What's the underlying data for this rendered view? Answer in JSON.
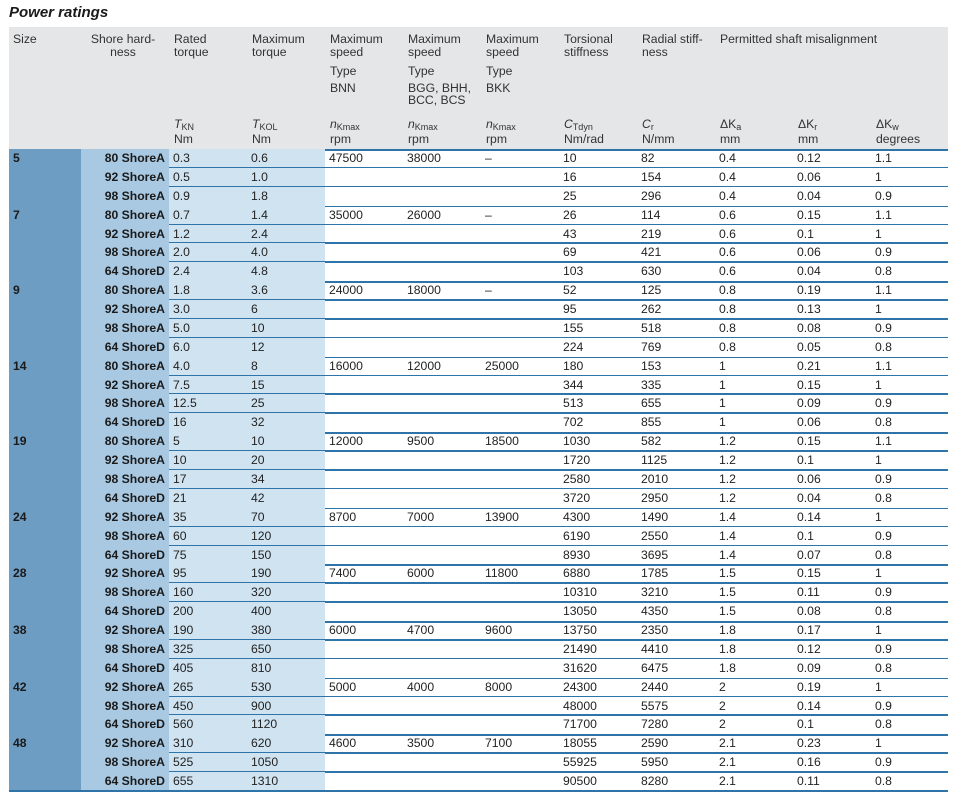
{
  "title": "Power ratings",
  "headers": {
    "size": "Size",
    "shore_1": "Shore hard-",
    "shore_2": "ness",
    "rated_1": "Rated",
    "rated_2": "torque",
    "max_torque_1": "Maximum",
    "max_torque_2": "torque",
    "max_speed_1": "Maximum",
    "max_speed_2": "speed",
    "type": "Type",
    "type_bnn": "BNN",
    "type_bgg_1": "BGG, BHH,",
    "type_bgg_2": "BCC, BCS",
    "type_bkk": "BKK",
    "torsional_1": "Torsional",
    "torsional_2": "stiffness",
    "radial_1": "Radial stiff-",
    "radial_2": "ness",
    "misalign": "Permitted shaft misalignment",
    "sym_t": "T",
    "sym_kn": "KN",
    "sym_kol": "KOL",
    "sym_n": "n",
    "sym_kmax": "Kmax",
    "sym_c": "C",
    "sym_tdyn": "Tdyn",
    "sym_r": "r",
    "sym_delta_k": "ΔK",
    "sym_a": "a",
    "sym_w": "w",
    "unit_nm": "Nm",
    "unit_rpm": "rpm",
    "unit_nmrad": "Nm/rad",
    "unit_nmm": "N/mm",
    "unit_mm": "mm",
    "unit_deg": "degrees"
  },
  "groups": [
    {
      "size": "5",
      "nbnn": "47500",
      "nbgg": "38000",
      "nbkk": "–",
      "rows": [
        {
          "shore": "80 ShoreA",
          "tkn": "0.3",
          "tkol": "0.6",
          "ct": "10",
          "cr": "82",
          "ka": "0.4",
          "kr": "0.12",
          "kw": "1.1"
        },
        {
          "shore": "92 ShoreA",
          "tkn": "0.5",
          "tkol": "1.0",
          "ct": "16",
          "cr": "154",
          "ka": "0.4",
          "kr": "0.06",
          "kw": "1"
        },
        {
          "shore": "98 ShoreA",
          "tkn": "0.9",
          "tkol": "1.8",
          "ct": "25",
          "cr": "296",
          "ka": "0.4",
          "kr": "0.04",
          "kw": "0.9"
        }
      ]
    },
    {
      "size": "7",
      "nbnn": "35000",
      "nbgg": "26000",
      "nbkk": "–",
      "rows": [
        {
          "shore": "80 ShoreA",
          "tkn": "0.7",
          "tkol": "1.4",
          "ct": "26",
          "cr": "114",
          "ka": "0.6",
          "kr": "0.15",
          "kw": "1.1"
        },
        {
          "shore": "92 ShoreA",
          "tkn": "1.2",
          "tkol": "2.4",
          "ct": "43",
          "cr": "219",
          "ka": "0.6",
          "kr": "0.1",
          "kw": "1"
        },
        {
          "shore": "98 ShoreA",
          "tkn": "2.0",
          "tkol": "4.0",
          "ct": "69",
          "cr": "421",
          "ka": "0.6",
          "kr": "0.06",
          "kw": "0.9"
        },
        {
          "shore": "64 ShoreD",
          "tkn": "2.4",
          "tkol": "4.8",
          "ct": "103",
          "cr": "630",
          "ka": "0.6",
          "kr": "0.04",
          "kw": "0.8"
        }
      ]
    },
    {
      "size": "9",
      "nbnn": "24000",
      "nbgg": "18000",
      "nbkk": "–",
      "rows": [
        {
          "shore": "80 ShoreA",
          "tkn": "1.8",
          "tkol": "3.6",
          "ct": "52",
          "cr": "125",
          "ka": "0.8",
          "kr": "0.19",
          "kw": "1.1"
        },
        {
          "shore": "92 ShoreA",
          "tkn": "3.0",
          "tkol": "6",
          "ct": "95",
          "cr": "262",
          "ka": "0.8",
          "kr": "0.13",
          "kw": "1"
        },
        {
          "shore": "98 ShoreA",
          "tkn": "5.0",
          "tkol": "10",
          "ct": "155",
          "cr": "518",
          "ka": "0.8",
          "kr": "0.08",
          "kw": "0.9"
        },
        {
          "shore": "64 ShoreD",
          "tkn": "6.0",
          "tkol": "12",
          "ct": "224",
          "cr": "769",
          "ka": "0.8",
          "kr": "0.05",
          "kw": "0.8"
        }
      ]
    },
    {
      "size": "14",
      "nbnn": "16000",
      "nbgg": "12000",
      "nbkk": "25000",
      "rows": [
        {
          "shore": "80 ShoreA",
          "tkn": "4.0",
          "tkol": "8",
          "ct": "180",
          "cr": "153",
          "ka": "1",
          "kr": "0.21",
          "kw": "1.1"
        },
        {
          "shore": "92 ShoreA",
          "tkn": "7.5",
          "tkol": "15",
          "ct": "344",
          "cr": "335",
          "ka": "1",
          "kr": "0.15",
          "kw": "1"
        },
        {
          "shore": "98 ShoreA",
          "tkn": "12.5",
          "tkol": "25",
          "ct": "513",
          "cr": "655",
          "ka": "1",
          "kr": "0.09",
          "kw": "0.9"
        },
        {
          "shore": "64 ShoreD",
          "tkn": "16",
          "tkol": "32",
          "ct": "702",
          "cr": "855",
          "ka": "1",
          "kr": "0.06",
          "kw": "0.8"
        }
      ]
    },
    {
      "size": "19",
      "nbnn": "12000",
      "nbgg": "9500",
      "nbkk": "18500",
      "rows": [
        {
          "shore": "80 ShoreA",
          "tkn": "5",
          "tkol": "10",
          "ct": "1030",
          "cr": "582",
          "ka": "1.2",
          "kr": "0.15",
          "kw": "1.1"
        },
        {
          "shore": "92 ShoreA",
          "tkn": "10",
          "tkol": "20",
          "ct": "1720",
          "cr": "1125",
          "ka": "1.2",
          "kr": "0.1",
          "kw": "1"
        },
        {
          "shore": "98 ShoreA",
          "tkn": "17",
          "tkol": "34",
          "ct": "2580",
          "cr": "2010",
          "ka": "1.2",
          "kr": "0.06",
          "kw": "0.9"
        },
        {
          "shore": "64 ShoreD",
          "tkn": "21",
          "tkol": "42",
          "ct": "3720",
          "cr": "2950",
          "ka": "1.2",
          "kr": "0.04",
          "kw": "0.8"
        }
      ]
    },
    {
      "size": "24",
      "nbnn": "8700",
      "nbgg": "7000",
      "nbkk": "13900",
      "rows": [
        {
          "shore": "92 ShoreA",
          "tkn": "35",
          "tkol": "70",
          "ct": "4300",
          "cr": "1490",
          "ka": "1.4",
          "kr": "0.14",
          "kw": "1"
        },
        {
          "shore": "98 ShoreA",
          "tkn": "60",
          "tkol": "120",
          "ct": "6190",
          "cr": "2550",
          "ka": "1.4",
          "kr": "0.1",
          "kw": "0.9"
        },
        {
          "shore": "64 ShoreD",
          "tkn": "75",
          "tkol": "150",
          "ct": "8930",
          "cr": "3695",
          "ka": "1.4",
          "kr": "0.07",
          "kw": "0.8"
        }
      ]
    },
    {
      "size": "28",
      "nbnn": "7400",
      "nbgg": "6000",
      "nbkk": "11800",
      "rows": [
        {
          "shore": "92 ShoreA",
          "tkn": "95",
          "tkol": "190",
          "ct": "6880",
          "cr": "1785",
          "ka": "1.5",
          "kr": "0.15",
          "kw": "1"
        },
        {
          "shore": "98 ShoreA",
          "tkn": "160",
          "tkol": "320",
          "ct": "10310",
          "cr": "3210",
          "ka": "1.5",
          "kr": "0.11",
          "kw": "0.9"
        },
        {
          "shore": "64 ShoreD",
          "tkn": "200",
          "tkol": "400",
          "ct": "13050",
          "cr": "4350",
          "ka": "1.5",
          "kr": "0.08",
          "kw": "0.8"
        }
      ]
    },
    {
      "size": "38",
      "nbnn": "6000",
      "nbgg": "4700",
      "nbkk": "9600",
      "rows": [
        {
          "shore": "92 ShoreA",
          "tkn": "190",
          "tkol": "380",
          "ct": "13750",
          "cr": "2350",
          "ka": "1.8",
          "kr": "0.17",
          "kw": "1"
        },
        {
          "shore": "98 ShoreA",
          "tkn": "325",
          "tkol": "650",
          "ct": "21490",
          "cr": "4410",
          "ka": "1.8",
          "kr": "0.12",
          "kw": "0.9"
        },
        {
          "shore": "64 ShoreD",
          "tkn": "405",
          "tkol": "810",
          "ct": "31620",
          "cr": "6475",
          "ka": "1.8",
          "kr": "0.09",
          "kw": "0.8"
        }
      ]
    },
    {
      "size": "42",
      "nbnn": "5000",
      "nbgg": "4000",
      "nbkk": "8000",
      "rows": [
        {
          "shore": "92 ShoreA",
          "tkn": "265",
          "tkol": "530",
          "ct": "24300",
          "cr": "2440",
          "ka": "2",
          "kr": "0.19",
          "kw": "1"
        },
        {
          "shore": "98 ShoreA",
          "tkn": "450",
          "tkol": "900",
          "ct": "48000",
          "cr": "5575",
          "ka": "2",
          "kr": "0.14",
          "kw": "0.9"
        },
        {
          "shore": "64 ShoreD",
          "tkn": "560",
          "tkol": "1120",
          "ct": "71700",
          "cr": "7280",
          "ka": "2",
          "kr": "0.1",
          "kw": "0.8"
        }
      ]
    },
    {
      "size": "48",
      "nbnn": "4600",
      "nbgg": "3500",
      "nbkk": "7100",
      "rows": [
        {
          "shore": "92 ShoreA",
          "tkn": "310",
          "tkol": "620",
          "ct": "18055",
          "cr": "2590",
          "ka": "2.1",
          "kr": "0.23",
          "kw": "1"
        },
        {
          "shore": "98 ShoreA",
          "tkn": "525",
          "tkol": "1050",
          "ct": "55925",
          "cr": "5950",
          "ka": "2.1",
          "kr": "0.16",
          "kw": "0.9"
        },
        {
          "shore": "64 ShoreD",
          "tkn": "655",
          "tkol": "1310",
          "ct": "90500",
          "cr": "8280",
          "ka": "2.1",
          "kr": "0.11",
          "kw": "0.8"
        }
      ]
    }
  ]
}
